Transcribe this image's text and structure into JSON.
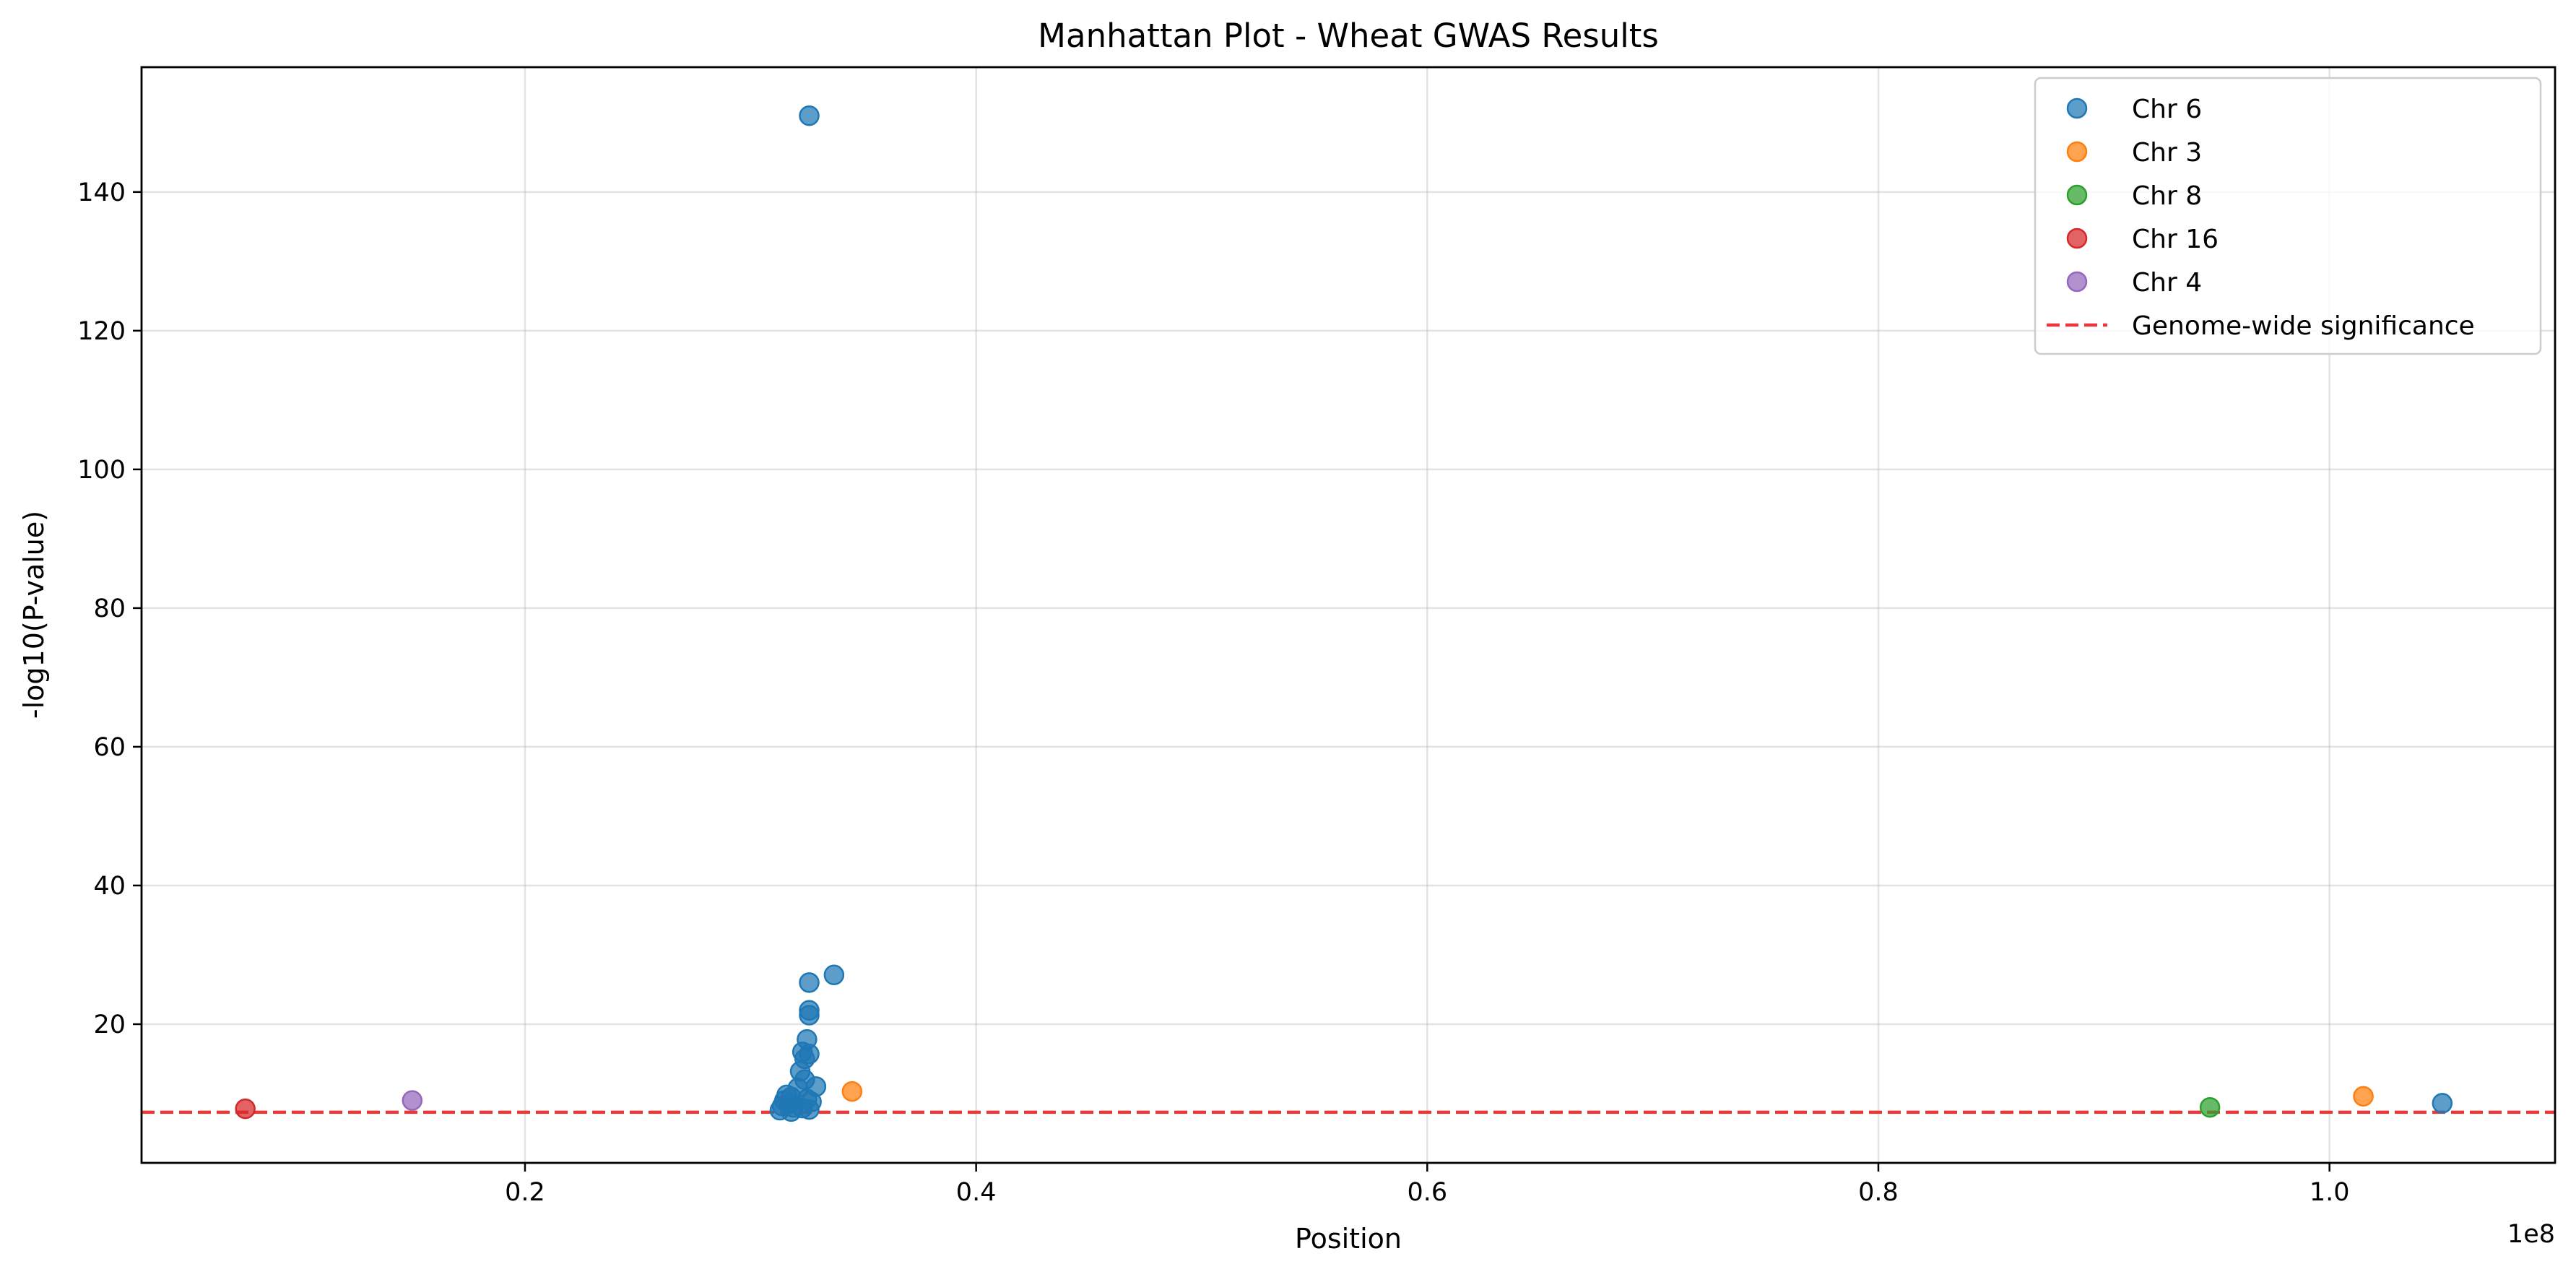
{
  "chart_data": {
    "type": "scatter",
    "title": "Manhattan Plot - Wheat GWAS Results",
    "xlabel": "Position",
    "ylabel": "-log10(P-value)",
    "x_offset_label": "1e8",
    "xlim": [
      3000000,
      110000000
    ],
    "ylim": [
      0,
      158
    ],
    "xticks": [
      {
        "value": 20000000,
        "label": "0.2"
      },
      {
        "value": 40000000,
        "label": "0.4"
      },
      {
        "value": 60000000,
        "label": "0.6"
      },
      {
        "value": 80000000,
        "label": "0.8"
      },
      {
        "value": 100000000,
        "label": "1.0"
      }
    ],
    "yticks": [
      {
        "value": 20,
        "label": "20"
      },
      {
        "value": 40,
        "label": "40"
      },
      {
        "value": 60,
        "label": "60"
      },
      {
        "value": 80,
        "label": "80"
      },
      {
        "value": 100,
        "label": "100"
      },
      {
        "value": 120,
        "label": "120"
      },
      {
        "value": 140,
        "label": "140"
      }
    ],
    "grid": true,
    "legend_position": "top-right",
    "series": [
      {
        "name": "Chr 6",
        "color": "#1f77b4",
        "points": [
          [
            32600000,
            151
          ],
          [
            33700000,
            27.1
          ],
          [
            32600000,
            26.0
          ],
          [
            32600000,
            22.0
          ],
          [
            32600000,
            21.3
          ],
          [
            32500000,
            17.8
          ],
          [
            32300000,
            16.0
          ],
          [
            32600000,
            15.7
          ],
          [
            32400000,
            15.0
          ],
          [
            32200000,
            13.2
          ],
          [
            32400000,
            12.0
          ],
          [
            32900000,
            11.0
          ],
          [
            32100000,
            10.8
          ],
          [
            31600000,
            9.8
          ],
          [
            31800000,
            9.5
          ],
          [
            32500000,
            9.2
          ],
          [
            31500000,
            9.0
          ],
          [
            32700000,
            8.8
          ],
          [
            31700000,
            8.5
          ],
          [
            31400000,
            8.2
          ],
          [
            31900000,
            8.0
          ],
          [
            32300000,
            7.9
          ],
          [
            32600000,
            7.7
          ],
          [
            31300000,
            7.6
          ],
          [
            31800000,
            7.4
          ],
          [
            105000000,
            8.6
          ]
        ]
      },
      {
        "name": "Chr 3",
        "color": "#ff7f0e",
        "points": [
          [
            34500000,
            10.3
          ],
          [
            101500000,
            9.6
          ]
        ]
      },
      {
        "name": "Chr 8",
        "color": "#2ca02c",
        "points": [
          [
            94700000,
            8.0
          ]
        ]
      },
      {
        "name": "Chr 16",
        "color": "#d62728",
        "points": [
          [
            7600000,
            7.8
          ]
        ]
      },
      {
        "name": "Chr 4",
        "color": "#9467bd",
        "points": [
          [
            15000000,
            9.0
          ]
        ]
      }
    ],
    "threshold": {
      "name": "Genome-wide significance",
      "value": 7.3,
      "color": "#e8383b"
    }
  }
}
